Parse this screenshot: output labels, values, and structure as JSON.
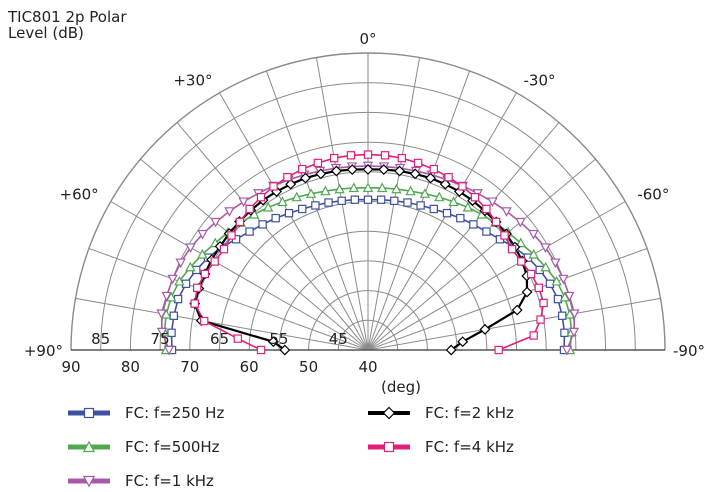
{
  "title": "TIC801 2p Polar",
  "subtitle": "Level  (dB)",
  "chart_data": {
    "type": "polar",
    "title": "TIC801 2p Polar",
    "r_label": "Level  (dB)",
    "xlabel": "(deg)",
    "angle_range": [
      -90,
      90
    ],
    "angle_direction": "positive angles to the left",
    "r_range": [
      40,
      90
    ],
    "r_grid_step": 5,
    "angle_grid_step": 10,
    "angle_labels": [
      "+90°",
      "+60°",
      "+30°",
      "0°",
      "-30°",
      "-60°",
      "-90°"
    ],
    "angle_label_values": [
      90,
      60,
      30,
      0,
      -30,
      -60,
      -90
    ],
    "radial_tick_labels": [
      "90",
      "80",
      "70",
      "60",
      "50",
      "40"
    ],
    "radial_tick_values": [
      90,
      80,
      70,
      60,
      50,
      40
    ],
    "ring_labels": [
      "85",
      "75",
      "65",
      "55",
      "45"
    ],
    "ring_label_values": [
      85,
      75,
      65,
      55,
      45
    ],
    "grid": true,
    "legend_position": "bottom",
    "series": [
      {
        "name": "FC: f=250 Hz",
        "color": "#4050a0",
        "marker": "square",
        "angles": [
          90,
          85,
          80,
          75,
          70,
          65,
          60,
          55,
          50,
          45,
          40,
          35,
          30,
          25,
          20,
          15,
          10,
          5,
          0,
          -5,
          -10,
          -15,
          -20,
          -25,
          -30,
          -35,
          -40,
          -45,
          -50,
          -55,
          -60,
          -65,
          -70,
          -75,
          -80,
          -85,
          -90
        ],
        "values": [
          73,
          73.2,
          73.2,
          73.1,
          72.6,
          71.9,
          71.1,
          70.1,
          69,
          68.2,
          67.6,
          67.1,
          66.6,
          66.2,
          65.9,
          65.7,
          65.5,
          65.4,
          65.3,
          65.4,
          65.5,
          65.7,
          65.9,
          66.2,
          66.6,
          67.1,
          67.6,
          68.2,
          69,
          70.1,
          71.1,
          71.9,
          72.6,
          73.1,
          73.2,
          73.2,
          73
        ]
      },
      {
        "name": "FC: f=500Hz",
        "color": "#50a850",
        "marker": "triangle-up",
        "angles": [
          90,
          85,
          80,
          75,
          70,
          65,
          60,
          55,
          50,
          45,
          40,
          35,
          30,
          25,
          20,
          15,
          10,
          5,
          0,
          -5,
          -10,
          -15,
          -20,
          -25,
          -30,
          -35,
          -40,
          -45,
          -50,
          -55,
          -60,
          -65,
          -70,
          -75,
          -80,
          -85,
          -90
        ],
        "values": [
          74,
          74.4,
          74.5,
          74.3,
          73.8,
          73,
          72.2,
          71.4,
          70.8,
          70.3,
          69.8,
          69.3,
          68.8,
          68.4,
          68,
          67.7,
          67.5,
          67.4,
          67.3,
          67.4,
          67.5,
          67.7,
          68,
          68.4,
          68.8,
          69.3,
          69.8,
          70.3,
          70.8,
          71.4,
          72.2,
          73,
          73.8,
          74.3,
          74.5,
          74.4,
          74
        ]
      },
      {
        "name": "FC: f=1 kHz",
        "color": "#a858a8",
        "marker": "triangle-down",
        "angles": [
          90,
          85,
          80,
          75,
          70,
          65,
          60,
          55,
          50,
          45,
          40,
          35,
          30,
          25,
          20,
          15,
          10,
          5,
          0,
          -5,
          -10,
          -15,
          -20,
          -25,
          -30,
          -35,
          -40,
          -45,
          -50,
          -55,
          -60,
          -65,
          -70,
          -75,
          -80,
          -85,
          -90
        ],
        "values": [
          73.5,
          74.8,
          75.3,
          75.1,
          75,
          74.8,
          74.5,
          74,
          73.5,
          73,
          72.6,
          72.2,
          71.9,
          71.6,
          71.4,
          71.2,
          71.1,
          71,
          71,
          71,
          71.1,
          71.2,
          71.4,
          71.6,
          71.9,
          72.2,
          72.6,
          73,
          73.5,
          74,
          74.5,
          74.8,
          75,
          75.1,
          75.3,
          74.8,
          73.5
        ]
      },
      {
        "name": "FC: f=2 kHz",
        "color": "#000000",
        "marker": "diamond",
        "angles": [
          90,
          85,
          80,
          75,
          70,
          65,
          60,
          55,
          50,
          45,
          40,
          35,
          30,
          25,
          20,
          15,
          10,
          5,
          0,
          -5,
          -10,
          -15,
          -20,
          -25,
          -30,
          -35,
          -40,
          -45,
          -50,
          -55,
          -60,
          -65,
          -70,
          -75,
          -80,
          -85,
          -90
        ],
        "values": [
          54,
          56,
          68.5,
          70.2,
          70.3,
          70.3,
          70.4,
          70.4,
          70.5,
          70.6,
          70.7,
          70.8,
          70.8,
          70.8,
          70.8,
          70.7,
          70.6,
          70.5,
          70.4,
          70.5,
          70.6,
          70.7,
          70.8,
          70.8,
          70.8,
          70.7,
          70.6,
          70.5,
          70.4,
          70.2,
          70,
          69.5,
          68.5,
          66,
          60,
          56,
          54
        ]
      },
      {
        "name": "FC: f=4 kHz",
        "color": "#e0207a",
        "marker": "square",
        "angles": [
          90,
          85,
          80,
          75,
          70,
          65,
          60,
          55,
          50,
          45,
          40,
          35,
          30,
          25,
          20,
          15,
          10,
          5,
          0,
          -5,
          -10,
          -15,
          -20,
          -25,
          -30,
          -35,
          -40,
          -45,
          -50,
          -55,
          -60,
          -65,
          -70,
          -75,
          -80,
          -85,
          -90
        ],
        "values": [
          58,
          62,
          68,
          70.2,
          70.6,
          70.3,
          69.8,
          69.6,
          70,
          70.5,
          71,
          71.4,
          71.8,
          72.1,
          72.4,
          72.6,
          72.8,
          72.9,
          72.9,
          72.9,
          72.8,
          72.6,
          72.4,
          72.1,
          71.8,
          71.4,
          71,
          70.5,
          70,
          69.6,
          69.8,
          70.3,
          70.6,
          70.6,
          69.5,
          68,
          62
        ]
      }
    ]
  }
}
